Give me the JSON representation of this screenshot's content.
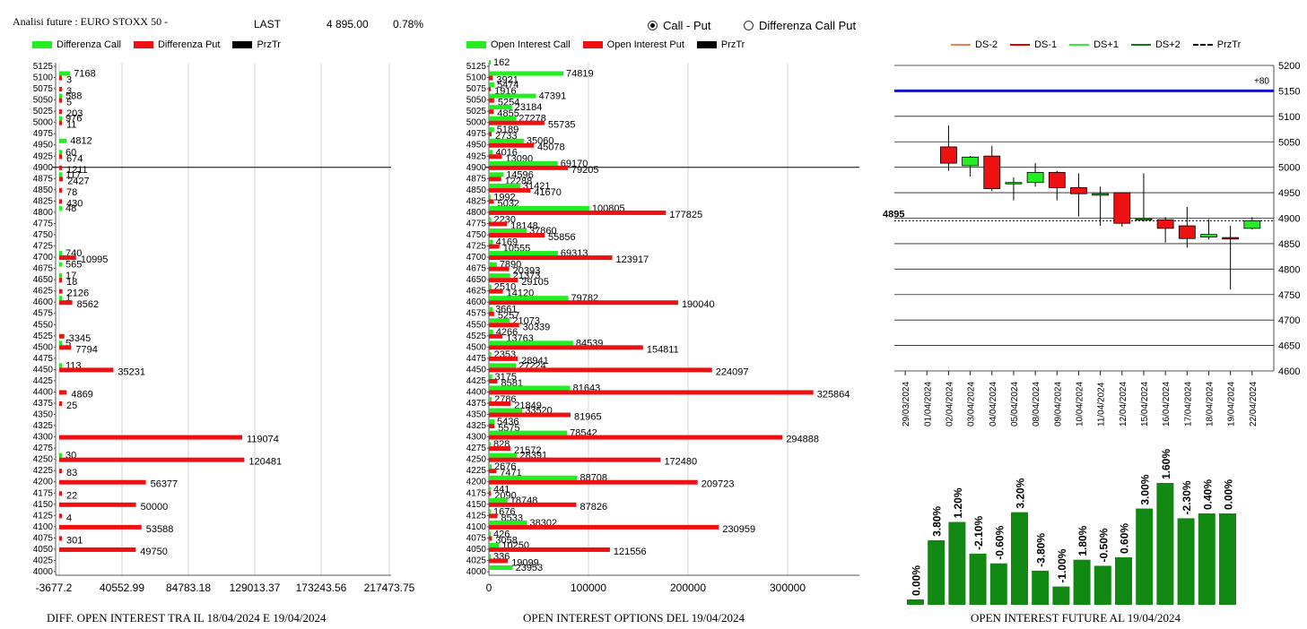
{
  "header": {
    "title": "Analisi future : EURO STOXX 50 -",
    "last_label": "LAST",
    "last_value": "4 895.00",
    "last_change": "0.78%"
  },
  "radio_options": [
    {
      "label": "Call - Put",
      "selected": true
    },
    {
      "label": "Differenza Call Put",
      "selected": false
    }
  ],
  "colors": {
    "call": "#22ee22",
    "put": "#ee1111",
    "price": "#000000",
    "bar": "#118811",
    "level": "#1111cc"
  },
  "chart_data": [
    {
      "id": "diff-oi",
      "type": "bar",
      "orientation": "horizontal",
      "title": "DIFF. OPEN INTEREST TRA IL 18/04/2024 E 19/04/2024",
      "legend": [
        "Differenza Call",
        "Differenza Put",
        "PrzTr"
      ],
      "xticks": [
        "-3677.2",
        "40552.99",
        "84783.18",
        "129013.37",
        "173243.56",
        "217473.75"
      ],
      "xlim": [
        -3677.2,
        217473.75
      ],
      "price_level": 4900,
      "strikes": [
        5125,
        5100,
        5075,
        5050,
        5025,
        5000,
        4975,
        4950,
        4925,
        4900,
        4875,
        4850,
        4825,
        4800,
        4775,
        4750,
        4725,
        4700,
        4675,
        4650,
        4625,
        4600,
        4575,
        4550,
        4525,
        4500,
        4475,
        4450,
        4425,
        4400,
        4375,
        4350,
        4325,
        4300,
        4275,
        4250,
        4225,
        4200,
        4175,
        4150,
        4125,
        4100,
        4075,
        4050,
        4025,
        4000
      ],
      "call": [
        {
          "strike": 5100,
          "value": 7168
        },
        {
          "strike": 5050,
          "value": 588
        },
        {
          "strike": 5000,
          "value": 976
        },
        {
          "strike": 4950,
          "value": 4812
        },
        {
          "strike": 4925,
          "value": 60
        },
        {
          "strike": 4875,
          "value": 117
        },
        {
          "strike": 4800,
          "value": 48
        },
        {
          "strike": 4700,
          "value": 740
        },
        {
          "strike": 4675,
          "value": 565
        },
        {
          "strike": 4650,
          "value": 17
        },
        {
          "strike": 4600,
          "value": 1
        },
        {
          "strike": 4500,
          "value": 5
        },
        {
          "strike": 4450,
          "value": 113
        },
        {
          "strike": 4250,
          "value": 30
        }
      ],
      "put": [
        {
          "strike": 5100,
          "value": 3
        },
        {
          "strike": 5075,
          "value": 3
        },
        {
          "strike": 5050,
          "value": 5
        },
        {
          "strike": 5025,
          "value": 203
        },
        {
          "strike": 5000,
          "value": 11
        },
        {
          "strike": 4925,
          "value": 674
        },
        {
          "strike": 4900,
          "value": 1211
        },
        {
          "strike": 4875,
          "value": 2427
        },
        {
          "strike": 4850,
          "value": 78
        },
        {
          "strike": 4825,
          "value": 430
        },
        {
          "strike": 4700,
          "value": 10995
        },
        {
          "strike": 4650,
          "value": 18
        },
        {
          "strike": 4625,
          "value": 2126
        },
        {
          "strike": 4600,
          "value": 8562
        },
        {
          "strike": 4525,
          "value": 3345
        },
        {
          "strike": 4500,
          "value": 7794
        },
        {
          "strike": 4450,
          "value": 35231
        },
        {
          "strike": 4400,
          "value": 4869
        },
        {
          "strike": 4375,
          "value": 25
        },
        {
          "strike": 4300,
          "value": 119074
        },
        {
          "strike": 4250,
          "value": 120481
        },
        {
          "strike": 4225,
          "value": 83
        },
        {
          "strike": 4200,
          "value": 56377
        },
        {
          "strike": 4175,
          "value": 22
        },
        {
          "strike": 4150,
          "value": 50000
        },
        {
          "strike": 4125,
          "value": 4
        },
        {
          "strike": 4100,
          "value": 53588
        },
        {
          "strike": 4075,
          "value": 301
        },
        {
          "strike": 4050,
          "value": 49750
        }
      ]
    },
    {
      "id": "oi-options",
      "type": "bar",
      "orientation": "horizontal",
      "title": "OPEN INTEREST OPTIONS DEL 19/04/2024",
      "legend": [
        "Open Interest Call",
        "Open Interest Put",
        "PrzTr"
      ],
      "xticks": [
        "0",
        "100000",
        "200000",
        "300000"
      ],
      "xlim": [
        0,
        370000
      ],
      "price_level": 4900,
      "strikes": [
        5125,
        5100,
        5075,
        5050,
        5025,
        5000,
        4975,
        4950,
        4925,
        4900,
        4875,
        4850,
        4825,
        4800,
        4775,
        4750,
        4725,
        4700,
        4675,
        4650,
        4625,
        4600,
        4575,
        4550,
        4525,
        4500,
        4475,
        4450,
        4425,
        4400,
        4375,
        4350,
        4325,
        4300,
        4275,
        4250,
        4225,
        4200,
        4175,
        4150,
        4125,
        4100,
        4075,
        4050,
        4025,
        4000
      ],
      "call": [
        162,
        74819,
        5474,
        47391,
        23184,
        27278,
        5189,
        35060,
        4016,
        69170,
        14596,
        31421,
        1992,
        100805,
        2230,
        37860,
        4169,
        69313,
        7890,
        21373,
        2510,
        79782,
        3661,
        21073,
        4266,
        84539,
        2353,
        27224,
        3175,
        81643,
        2786,
        33520,
        5436,
        78542,
        828,
        28391,
        2676,
        88708,
        441,
        18748,
        1676,
        38302,
        426,
        10250,
        336,
        23953
      ],
      "put": [
        null,
        3921,
        1916,
        5254,
        4855,
        55735,
        2733,
        45078,
        13090,
        79205,
        12288,
        41670,
        5032,
        177825,
        18148,
        55856,
        10555,
        123917,
        20393,
        29105,
        14120,
        190040,
        5257,
        30339,
        13763,
        154811,
        28941,
        224097,
        8581,
        325864,
        21849,
        81965,
        5575,
        294888,
        21572,
        172480,
        7471,
        209723,
        2090,
        87826,
        8533,
        230959,
        3058,
        121556,
        19099,
        null
      ]
    },
    {
      "id": "future-candles",
      "type": "candlestick",
      "legend": [
        "DS-2",
        "DS-1",
        "DS+1",
        "DS+2",
        "PrzTr"
      ],
      "ylim": [
        4600,
        5200
      ],
      "yticks": [
        "5200",
        "5150",
        "5100",
        "5050",
        "5000",
        "4950",
        "4900",
        "4850",
        "4800",
        "4750",
        "4700",
        "4650",
        "4600"
      ],
      "last_price": 4895,
      "last_price_label": "4895",
      "level_line": 5150,
      "level_label": "+80",
      "dates": [
        "29/03/2024",
        "01/04/2024",
        "02/04/2024",
        "03/04/2024",
        "04/04/2024",
        "05/04/2024",
        "08/04/2024",
        "09/04/2024",
        "10/04/2024",
        "11/04/2024",
        "12/04/2024",
        "15/04/2024",
        "16/04/2024",
        "17/04/2024",
        "18/04/2024",
        "19/04/2024",
        "22/04/2024"
      ],
      "candles": [
        null,
        null,
        {
          "open": 5040,
          "close": 5008,
          "high": 5082,
          "low": 4993
        },
        {
          "open": 5003,
          "close": 5020,
          "high": 5022,
          "low": 4982
        },
        {
          "open": 5022,
          "close": 4958,
          "high": 5042,
          "low": 4953
        },
        {
          "open": 4968,
          "close": 4970,
          "high": 4980,
          "low": 4935
        },
        {
          "open": 4970,
          "close": 4990,
          "high": 5008,
          "low": 4962
        },
        {
          "open": 4990,
          "close": 4960,
          "high": 4993,
          "low": 4935
        },
        {
          "open": 4960,
          "close": 4948,
          "high": 4988,
          "low": 4903
        },
        {
          "open": 4945,
          "close": 4948,
          "high": 4962,
          "low": 4885
        },
        {
          "open": 4950,
          "close": 4890,
          "high": 4950,
          "low": 4883
        },
        {
          "open": 4897,
          "close": 4899,
          "high": 4988,
          "low": 4893
        },
        {
          "open": 4897,
          "close": 4880,
          "high": 4902,
          "low": 4852
        },
        {
          "open": 4885,
          "close": 4860,
          "high": 4922,
          "low": 4842
        },
        {
          "open": 4863,
          "close": 4868,
          "high": 4898,
          "low": 4858
        },
        {
          "open": 4862,
          "close": 4859,
          "high": 4885,
          "low": 4760
        },
        {
          "open": 4880,
          "close": 4895,
          "high": 4902,
          "low": 4878
        }
      ]
    },
    {
      "id": "oi-future",
      "type": "bar",
      "title": "OPEN INTEREST FUTURE AL 19/04/2024",
      "labels": [
        "0.00%",
        "3.80%",
        "1.20%",
        "-2.10%",
        "-0.60%",
        "3.20%",
        "-3.80%",
        "-1.00%",
        "1.80%",
        "-0.50%",
        "0.60%",
        "3.00%",
        "1.60%",
        "-2.30%",
        "0.40%",
        "0.00%"
      ],
      "relative_heights": [
        0.04,
        0.53,
        0.68,
        0.42,
        0.34,
        0.76,
        0.28,
        0.15,
        0.37,
        0.32,
        0.39,
        0.79,
        1.0,
        0.71,
        0.75,
        0.75
      ]
    }
  ]
}
